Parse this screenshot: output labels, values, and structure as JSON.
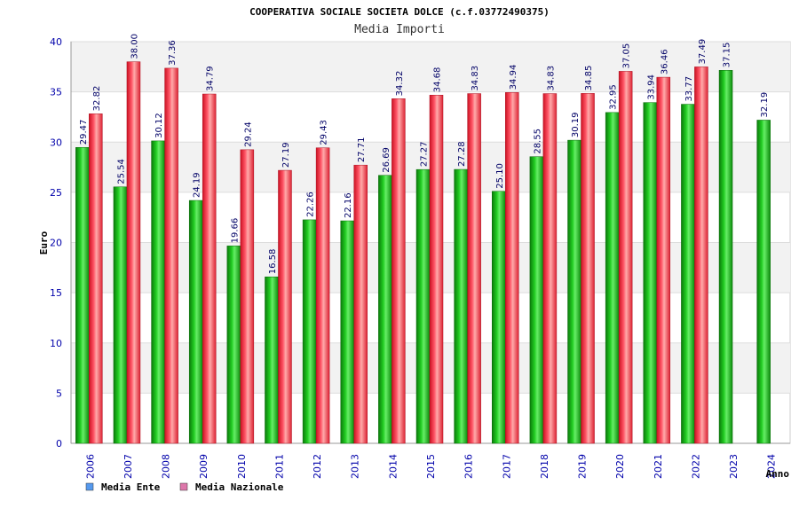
{
  "chart_data": {
    "type": "bar",
    "title": "COOPERATIVA SOCIALE SOCIETA DOLCE (c.f.03772490375)",
    "subtitle": "Media Importi",
    "xlabel": "Anno",
    "ylabel": "Euro",
    "ylim": [
      0,
      40
    ],
    "yticks": [
      0,
      5,
      10,
      15,
      20,
      25,
      30,
      35,
      40
    ],
    "grid": true,
    "legend_position": "bottom-left",
    "categories": [
      "2006",
      "2007",
      "2008",
      "2009",
      "2010",
      "2011",
      "2012",
      "2013",
      "2014",
      "2015",
      "2016",
      "2017",
      "2018",
      "2019",
      "2020",
      "2021",
      "2022",
      "2023",
      "2024"
    ],
    "series": [
      {
        "name": "Media Ente",
        "legend_color": "#5599ee",
        "bar_color": "#11aa11",
        "values": [
          29.47,
          25.54,
          30.12,
          24.19,
          19.66,
          16.58,
          22.26,
          22.16,
          26.69,
          27.27,
          27.28,
          25.1,
          28.55,
          30.19,
          32.95,
          33.94,
          33.77,
          37.15,
          32.19
        ],
        "labels": [
          "29.47",
          "25.54",
          "30.12",
          "24.19",
          "19.66",
          "16.58",
          "22.26",
          "22.16",
          "26.69",
          "27.27",
          "27.28",
          "25.10",
          "28.55",
          "30.19",
          "32.95",
          "33.94",
          "33.77",
          "37.15",
          "32.19"
        ]
      },
      {
        "name": "Media Nazionale",
        "legend_color": "#dd77aa",
        "bar_color": "#ee2233",
        "values": [
          32.82,
          38.0,
          37.36,
          34.79,
          29.24,
          27.19,
          29.43,
          27.71,
          34.32,
          34.68,
          34.83,
          34.94,
          34.83,
          34.85,
          37.05,
          36.46,
          37.49,
          null,
          null
        ],
        "labels": [
          "32.82",
          "38.00",
          "37.36",
          "34.79",
          "29.24",
          "27.19",
          "29.43",
          "27.71",
          "34.32",
          "34.68",
          "34.83",
          "34.94",
          "34.83",
          "34.85",
          "37.05",
          "36.46",
          "37.49",
          null,
          null
        ]
      }
    ]
  }
}
